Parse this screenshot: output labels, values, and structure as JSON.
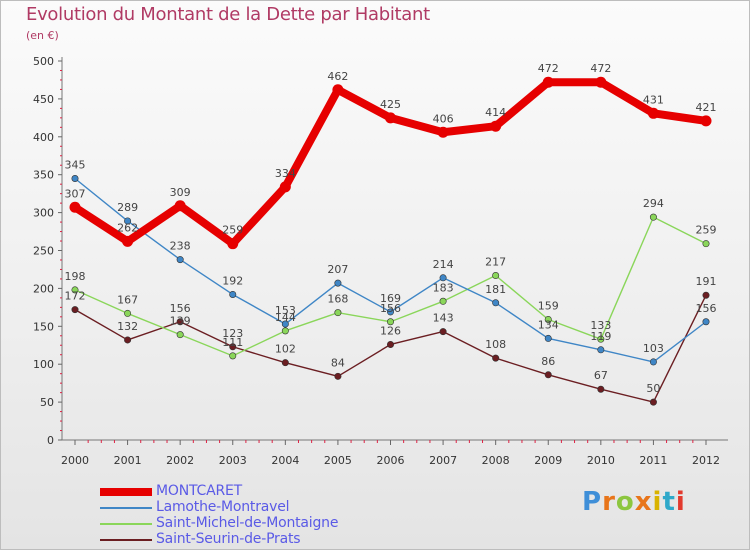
{
  "header": {
    "title": "Evolution du Montant de la Dette par Habitant",
    "subtitle": "(en €)"
  },
  "logo": {
    "text": "Proxiti",
    "colors": [
      "#3f8fd8",
      "#e8751a",
      "#8cc63f",
      "#e8751a",
      "#d9b300",
      "#2fa8c9",
      "#e23a2e"
    ]
  },
  "chart_data": {
    "type": "line",
    "title": "Evolution du Montant de la Dette par Habitant",
    "ylabel": "(en €)",
    "xlabel": "",
    "x": [
      "2000",
      "2001",
      "2002",
      "2003",
      "2004",
      "2005",
      "2006",
      "2007",
      "2008",
      "2009",
      "2010",
      "2011",
      "2012"
    ],
    "ylim": [
      0,
      500
    ],
    "yticks": [
      "0",
      "50",
      "100",
      "150",
      "200",
      "250",
      "300",
      "350",
      "400",
      "450",
      "500"
    ],
    "grid": false,
    "legend": "bottom-left",
    "series": [
      {
        "name": "MONTCARET",
        "color": "#e60000",
        "values": [
          307,
          262,
          309,
          259,
          334,
          462,
          425,
          406,
          414,
          472,
          472,
          431,
          421
        ],
        "labels": [
          "307",
          "262",
          "309",
          "259",
          "334",
          "462",
          "425",
          "406",
          "414",
          "472",
          "472",
          "431",
          "421"
        ]
      },
      {
        "name": "Lamothe-Montravel",
        "color": "#3f86c6",
        "values": [
          345,
          289,
          238,
          192,
          153,
          207,
          169,
          214,
          181,
          134,
          119,
          103,
          156
        ],
        "labels": [
          "345",
          "289",
          "238",
          "192",
          "153",
          "207",
          "169",
          "214",
          "181",
          "134",
          "119",
          "103",
          "156"
        ]
      },
      {
        "name": "Saint-Michel-de-Montaigne",
        "color": "#8ad65a",
        "values": [
          198,
          167,
          139,
          111,
          144,
          168,
          156,
          183,
          217,
          159,
          133,
          294,
          259
        ],
        "labels": [
          "198",
          "167",
          "139",
          "111",
          "144",
          "168",
          "156",
          "183",
          "217",
          "159",
          "133",
          "294",
          "259"
        ]
      },
      {
        "name": "Saint-Seurin-de-Prats",
        "color": "#6b1e22",
        "values": [
          172,
          132,
          156,
          123,
          102,
          84,
          126,
          143,
          108,
          86,
          67,
          50,
          191
        ],
        "labels": [
          "172",
          "132",
          "156",
          "123",
          "102",
          "84",
          "126",
          "143",
          "108",
          "86",
          "67",
          "50",
          "191"
        ]
      }
    ]
  }
}
